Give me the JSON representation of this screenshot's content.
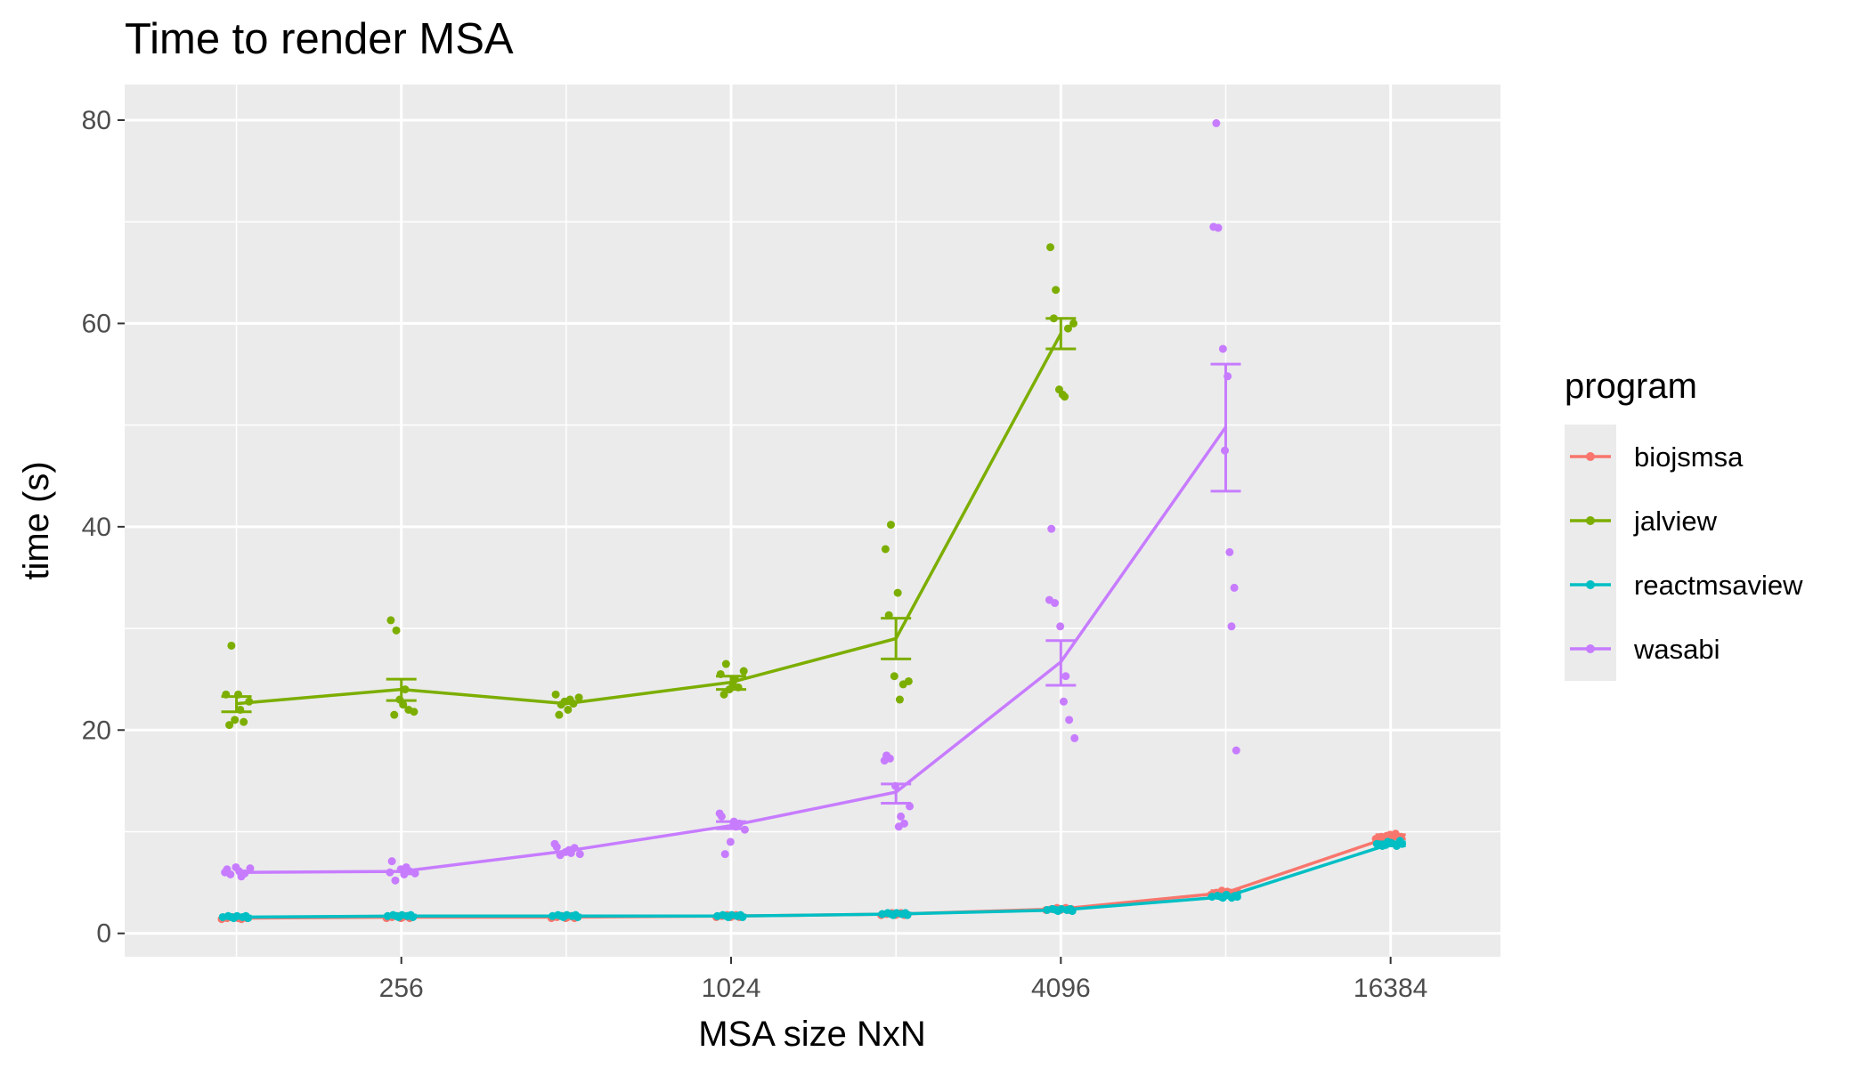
{
  "chart_data": {
    "type": "line",
    "title": "Time to render MSA",
    "xlabel": "MSA size NxN",
    "ylabel": "time (s)",
    "x_scale": "log2",
    "x": [
      128,
      256,
      512,
      1024,
      2048,
      4096,
      8192,
      16384
    ],
    "x_ticks": [
      256,
      1024,
      4096,
      16384
    ],
    "x_tick_labels": [
      "256",
      "1024",
      "4096",
      "16384"
    ],
    "xlim": [
      80,
      26000
    ],
    "ylim": [
      -2.3,
      83.5
    ],
    "y_ticks": [
      0,
      20,
      40,
      60,
      80
    ],
    "y_tick_labels": [
      "0",
      "20",
      "40",
      "60",
      "80"
    ],
    "grid": true,
    "legend": {
      "title": "program",
      "position": "right"
    },
    "series": [
      {
        "name": "biojsmsa",
        "color": "#F8766D",
        "mean": [
          1.5,
          1.6,
          1.6,
          1.7,
          1.9,
          2.4,
          4.0,
          9.5
        ],
        "error": [
          [
            1.4,
            1.6
          ],
          [
            1.5,
            1.7
          ],
          [
            1.5,
            1.7
          ],
          [
            1.6,
            1.8
          ],
          [
            1.8,
            2.0
          ],
          [
            2.3,
            2.5
          ],
          [
            3.8,
            4.2
          ],
          [
            9.3,
            9.7
          ]
        ],
        "points": [
          [
            1.4,
            1.5,
            1.6,
            1.5,
            1.6,
            1.4,
            1.5,
            1.6
          ],
          [
            1.5,
            1.6,
            1.7,
            1.6,
            1.5,
            1.7,
            1.6,
            1.5
          ],
          [
            1.5,
            1.6,
            1.7,
            1.6,
            1.5,
            1.7,
            1.6,
            1.5
          ],
          [
            1.6,
            1.7,
            1.8,
            1.7,
            1.6,
            1.8,
            1.7,
            1.6
          ],
          [
            1.8,
            1.9,
            2.0,
            1.9,
            1.8,
            2.0,
            1.9,
            1.8
          ],
          [
            2.3,
            2.4,
            2.5,
            2.4,
            2.3,
            2.5,
            2.4,
            2.3
          ],
          [
            3.8,
            4.0,
            4.2,
            4.1,
            3.9,
            4.0,
            4.1,
            3.9
          ],
          [
            9.3,
            9.5,
            9.6,
            9.4,
            9.7,
            9.8,
            9.5,
            9.4
          ]
        ]
      },
      {
        "name": "jalview",
        "color": "#7CAE00",
        "mean": [
          22.6,
          24.0,
          22.6,
          24.7,
          29.0,
          59.0,
          null,
          null
        ],
        "error": [
          [
            21.8,
            23.3
          ],
          [
            22.9,
            25.0
          ],
          null,
          [
            24.0,
            25.3
          ],
          [
            27.0,
            31.0
          ],
          [
            57.5,
            60.5
          ],
          null,
          null
        ],
        "points": [
          [
            23.5,
            28.3,
            20.5,
            21.0,
            22.0,
            23.5,
            20.8,
            22.8
          ],
          [
            30.8,
            29.8,
            21.5,
            23.0,
            24.0,
            22.5,
            22.0,
            21.8
          ],
          [
            23.5,
            22.5,
            21.5,
            22.8,
            23.0,
            22.0,
            22.6,
            23.2
          ],
          [
            25.5,
            26.5,
            23.5,
            24.0,
            25.0,
            24.5,
            24.2,
            25.8
          ],
          [
            37.8,
            40.2,
            31.3,
            25.3,
            23.0,
            33.5,
            24.5,
            24.8
          ],
          [
            67.5,
            63.3,
            60.5,
            53.5,
            52.8,
            53.0,
            59.5,
            60.0
          ],
          null,
          null
        ]
      },
      {
        "name": "reactmsaview",
        "color": "#00BFC4",
        "mean": [
          1.6,
          1.7,
          1.7,
          1.7,
          1.9,
          2.3,
          3.6,
          8.8
        ],
        "error": [
          [
            1.5,
            1.7
          ],
          [
            1.6,
            1.8
          ],
          [
            1.6,
            1.8
          ],
          [
            1.6,
            1.8
          ],
          [
            1.8,
            2.0
          ],
          [
            2.2,
            2.4
          ],
          [
            3.5,
            3.8
          ],
          [
            8.6,
            9.0
          ]
        ],
        "points": [
          [
            1.6,
            1.7,
            1.5,
            1.6,
            1.7,
            1.6,
            1.5,
            1.7
          ],
          [
            1.7,
            1.8,
            1.6,
            1.7,
            1.8,
            1.7,
            1.6,
            1.8
          ],
          [
            1.7,
            1.8,
            1.6,
            1.7,
            1.8,
            1.7,
            1.6,
            1.8
          ],
          [
            1.7,
            1.8,
            1.6,
            1.7,
            1.8,
            1.7,
            1.6,
            1.8
          ],
          [
            1.9,
            2.0,
            1.8,
            1.9,
            2.0,
            1.9,
            1.8,
            2.0
          ],
          [
            2.3,
            2.4,
            2.2,
            2.3,
            2.4,
            2.3,
            2.2,
            2.4
          ],
          [
            3.6,
            3.7,
            3.5,
            3.6,
            3.8,
            3.5,
            3.6,
            3.7
          ],
          [
            8.8,
            8.6,
            9.0,
            8.7,
            8.9,
            8.6,
            8.8,
            9.1
          ]
        ]
      },
      {
        "name": "wasabi",
        "color": "#C77CFF",
        "mean": [
          6.0,
          6.1,
          8.1,
          10.6,
          13.9,
          26.7,
          49.8,
          null
        ],
        "error": [
          null,
          null,
          null,
          [
            10.3,
            11.0
          ],
          [
            12.8,
            14.7
          ],
          [
            24.4,
            28.8
          ],
          [
            43.5,
            56.0
          ],
          null
        ],
        "points": [
          [
            6.3,
            6.0,
            5.8,
            6.5,
            5.6,
            6.1,
            5.9,
            6.4
          ],
          [
            7.1,
            6.0,
            5.2,
            6.3,
            6.5,
            5.8,
            6.1,
            5.9
          ],
          [
            8.5,
            8.8,
            7.7,
            8.0,
            7.9,
            8.2,
            8.4,
            7.8
          ],
          [
            11.5,
            11.8,
            7.8,
            9.0,
            10.5,
            11.0,
            10.8,
            10.2
          ],
          [
            17.5,
            17.0,
            17.2,
            14.5,
            11.5,
            10.5,
            10.8,
            12.5
          ],
          [
            39.8,
            32.8,
            32.5,
            30.2,
            25.3,
            22.8,
            21.0,
            19.2
          ],
          [
            79.7,
            69.5,
            69.4,
            57.5,
            54.8,
            47.5,
            37.5,
            34.0,
            30.2,
            18.0
          ],
          null
        ]
      }
    ]
  }
}
